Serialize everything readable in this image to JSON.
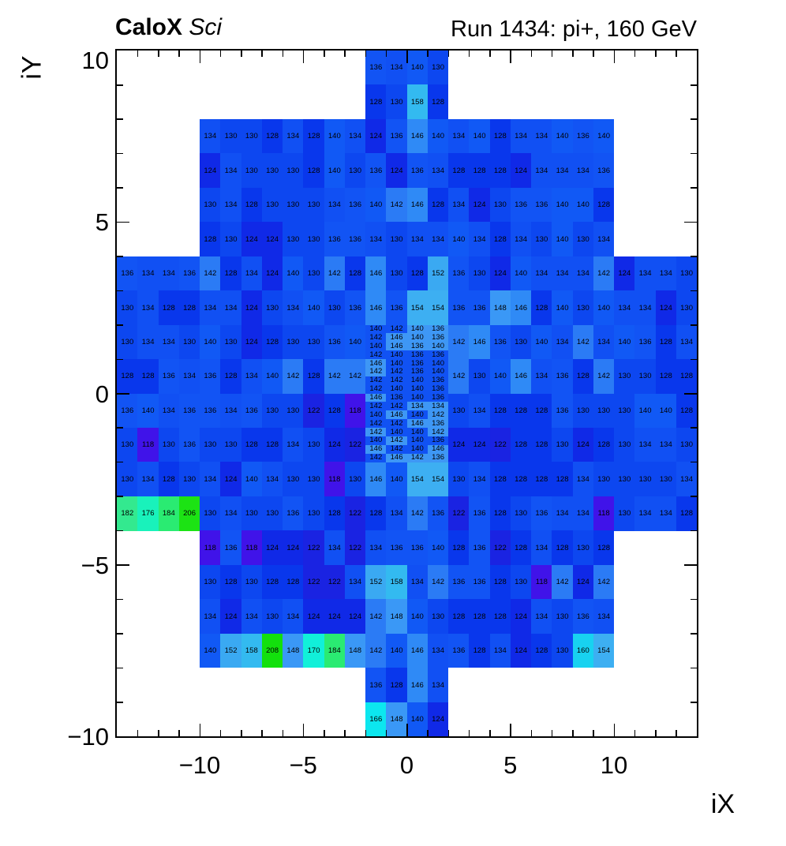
{
  "header": {
    "detector_bold": "CaloX",
    "detector_italic": " Sci",
    "run_title": "Run 1434: pi+, 160 GeV"
  },
  "axes": {
    "x_title": "iX",
    "y_title": "iY",
    "x_tick_values": [
      -10,
      -5,
      0,
      5,
      10
    ],
    "x_tick_labels": [
      "−10",
      "−5",
      "0",
      "5",
      "10"
    ],
    "y_tick_values": [
      10,
      5,
      0,
      -5,
      -10
    ],
    "y_tick_labels": [
      "10",
      "5",
      "0",
      "−5",
      "−10"
    ],
    "x_range": [
      -14,
      14
    ],
    "y_range": [
      -10,
      10
    ]
  },
  "palette": {
    "118": "#4013E9",
    "122": "#1A23E2",
    "124": "#1029E7",
    "128": "#0937EC",
    "130": "#0D47F0",
    "134": "#1150F3",
    "136": "#1254F4",
    "140": "#1159F5",
    "142": "#2B7BF5",
    "146": "#2F8AF6",
    "148": "#3A98F6",
    "152": "#3AA9F2",
    "154": "#3DAFF2",
    "158": "#33BAF0",
    "160": "#18D2F0",
    "166": "#0CE7EF",
    "170": "#11F0D9",
    "176": "#19F2BB",
    "182": "#33E98F",
    "184": "#2AEB72",
    "206": "#1CE314",
    "208": "#13E00D"
  },
  "chart_data": {
    "type": "heatmap",
    "title": "Run 1434: pi+, 160 GeV",
    "subtitle": "CaloX Sci",
    "xlabel": "iX",
    "ylabel": "iY",
    "x_range": [
      -14,
      14
    ],
    "y_range": [
      -10,
      10
    ],
    "grid": false,
    "legend": "none",
    "cell_unit": 1,
    "rows": [
      {
        "iy_high": 10,
        "segments": [
          {
            "ix_start": -2,
            "v": [
              136,
              134,
              140,
              130
            ]
          }
        ]
      },
      {
        "iy_high": 9,
        "segments": [
          {
            "ix_start": -2,
            "v": [
              128,
              130,
              158,
              128
            ]
          }
        ]
      },
      {
        "iy_high": 8,
        "segments": [
          {
            "ix_start": -10,
            "v": [
              134,
              130,
              130,
              128,
              134,
              128,
              140,
              134,
              124,
              136,
              146,
              140,
              134,
              140,
              128,
              134,
              134,
              140,
              136,
              140
            ]
          }
        ]
      },
      {
        "iy_high": 7,
        "segments": [
          {
            "ix_start": -10,
            "v": [
              124,
              134,
              130,
              130,
              130,
              128,
              140,
              130,
              136,
              124,
              136,
              134,
              128,
              128,
              128,
              124,
              134,
              134,
              134,
              136
            ]
          }
        ]
      },
      {
        "iy_high": 6,
        "segments": [
          {
            "ix_start": -10,
            "v": [
              130,
              134,
              128,
              130,
              130,
              130,
              134,
              136,
              140,
              142,
              146,
              128,
              134,
              124,
              130,
              136,
              136,
              140,
              140,
              128
            ]
          }
        ]
      },
      {
        "iy_high": 5,
        "segments": [
          {
            "ix_start": -10,
            "v": [
              128,
              130,
              124,
              124,
              130,
              130,
              136,
              136,
              134,
              130,
              134,
              134,
              140,
              134,
              128,
              134,
              130,
              140,
              130,
              134
            ]
          }
        ]
      },
      {
        "iy_high": 4,
        "segments": [
          {
            "ix_start": -14,
            "v": [
              136,
              134,
              134,
              136,
              142,
              128,
              134,
              124,
              140,
              130,
              142,
              128,
              146,
              130,
              128,
              152,
              136,
              130,
              124,
              140,
              134,
              134,
              134,
              142,
              124,
              134,
              134,
              130
            ]
          }
        ]
      },
      {
        "iy_high": 3,
        "segments": [
          {
            "ix_start": -14,
            "v": [
              130,
              134,
              128,
              128,
              134,
              134,
              124,
              130,
              134,
              140,
              130,
              136,
              146,
              136,
              154,
              154,
              136,
              136,
              148,
              146,
              128,
              140,
              130,
              140,
              134,
              134,
              124,
              130
            ]
          }
        ]
      },
      {
        "iy_high": 2,
        "segments": [
          {
            "ix_start": -14,
            "v": [
              130,
              134,
              134,
              130,
              140,
              130,
              124,
              128,
              130,
              130,
              136,
              140
            ]
          },
          {
            "ix_start": 2,
            "v": [
              142,
              146,
              136,
              130,
              140,
              134,
              142,
              134,
              140,
              136,
              128,
              134
            ]
          }
        ]
      },
      {
        "iy_high": 1,
        "segments": [
          {
            "ix_start": -14,
            "v": [
              128,
              128,
              136,
              134,
              136,
              128,
              134,
              140,
              142,
              128,
              142,
              142
            ]
          },
          {
            "ix_start": 2,
            "v": [
              142,
              130,
              140,
              146,
              134,
              136,
              128,
              142,
              130,
              130,
              128,
              128
            ]
          }
        ]
      },
      {
        "iy_high": 0,
        "segments": [
          {
            "ix_start": -14,
            "v": [
              136,
              140,
              134,
              136,
              136,
              134,
              136,
              130,
              130,
              122,
              128,
              118
            ]
          },
          {
            "ix_start": 2,
            "v": [
              130,
              134,
              128,
              128,
              128,
              136,
              130,
              130,
              130,
              140,
              140,
              128
            ]
          }
        ]
      },
      {
        "iy_high": -1,
        "segments": [
          {
            "ix_start": -14,
            "v": [
              130,
              118,
              130,
              136,
              130,
              130,
              128,
              128,
              134,
              130,
              124,
              122
            ]
          },
          {
            "ix_start": 2,
            "v": [
              124,
              124,
              122,
              128,
              128,
              130,
              124,
              128,
              130,
              134,
              134,
              130
            ]
          }
        ]
      },
      {
        "iy_high": -2,
        "segments": [
          {
            "ix_start": -14,
            "v": [
              130,
              134,
              128,
              130,
              134,
              124,
              140,
              134,
              130,
              130,
              118,
              130,
              146,
              140,
              154,
              154,
              130,
              134,
              128,
              128,
              128,
              128,
              134,
              130,
              130,
              130,
              130,
              134
            ]
          }
        ]
      },
      {
        "iy_high": -3,
        "segments": [
          {
            "ix_start": -14,
            "v": [
              182,
              176,
              184,
              206,
              130,
              134,
              130,
              130,
              136,
              130,
              128,
              122,
              128,
              134,
              142,
              136,
              122,
              136,
              128,
              130,
              136,
              134,
              134,
              118,
              130,
              134,
              134,
              128
            ]
          }
        ]
      },
      {
        "iy_high": -4,
        "segments": [
          {
            "ix_start": -10,
            "v": [
              118,
              136,
              118,
              124,
              124,
              122,
              134,
              122,
              134,
              136,
              136,
              140,
              128,
              136,
              122,
              128,
              134,
              128,
              130,
              128
            ]
          }
        ]
      },
      {
        "iy_high": -5,
        "segments": [
          {
            "ix_start": -10,
            "v": [
              130,
              128,
              130,
              128,
              128,
              122,
              122,
              134,
              152,
              158,
              134,
              142,
              136,
              136,
              128,
              130,
              118,
              142,
              124,
              142
            ]
          }
        ]
      },
      {
        "iy_high": -6,
        "segments": [
          {
            "ix_start": -10,
            "v": [
              134,
              124,
              134,
              130,
              134,
              124,
              124,
              124,
              142,
              148,
              140,
              130,
              128,
              128,
              128,
              124,
              134,
              130,
              136,
              134
            ]
          }
        ]
      },
      {
        "iy_high": -7,
        "segments": [
          {
            "ix_start": -10,
            "v": [
              140,
              152,
              158,
              208,
              148,
              170,
              184,
              148,
              142,
              140,
              146,
              134,
              136,
              128,
              134,
              124,
              128,
              130,
              160,
              154
            ]
          }
        ]
      },
      {
        "iy_high": -8,
        "segments": [
          {
            "ix_start": -2,
            "v": [
              136,
              128,
              146,
              134
            ]
          }
        ]
      },
      {
        "iy_high": -9,
        "segments": [
          {
            "ix_start": -2,
            "v": [
              166,
              148,
              140,
              124
            ]
          }
        ]
      }
    ],
    "fine_region": {
      "ix_start": -2,
      "iy_top": 2,
      "cols": 4,
      "sub_rows": 16,
      "sub_row_height_units": 0.25,
      "bg_colors": {
        "m": "#1152F3",
        "l": "#3E97F5"
      },
      "bg": [
        "mmll",
        "mlll",
        "mlll",
        "mmmm",
        "lmmm",
        "lmmm",
        "mmmm",
        "mmmm",
        "lmmm",
        "mmll",
        "mlml",
        "mmll",
        "lmml",
        "mlmm",
        "lmml",
        "mlll"
      ],
      "values": [
        [
          140,
          142,
          140,
          136
        ],
        [
          142,
          146,
          140,
          136
        ],
        [
          140,
          146,
          136,
          140
        ],
        [
          142,
          140,
          136,
          136
        ],
        [
          146,
          140,
          136,
          140
        ],
        [
          142,
          142,
          136,
          140
        ],
        [
          142,
          142,
          140,
          136
        ],
        [
          142,
          140,
          140,
          136
        ],
        [
          146,
          136,
          140,
          136
        ],
        [
          142,
          142,
          134,
          134
        ],
        [
          140,
          146,
          140,
          142
        ],
        [
          142,
          142,
          146,
          136
        ],
        [
          142,
          140,
          140,
          142
        ],
        [
          140,
          142,
          140,
          136
        ],
        [
          146,
          142,
          140,
          146
        ],
        [
          142,
          146,
          142,
          136
        ]
      ]
    }
  }
}
